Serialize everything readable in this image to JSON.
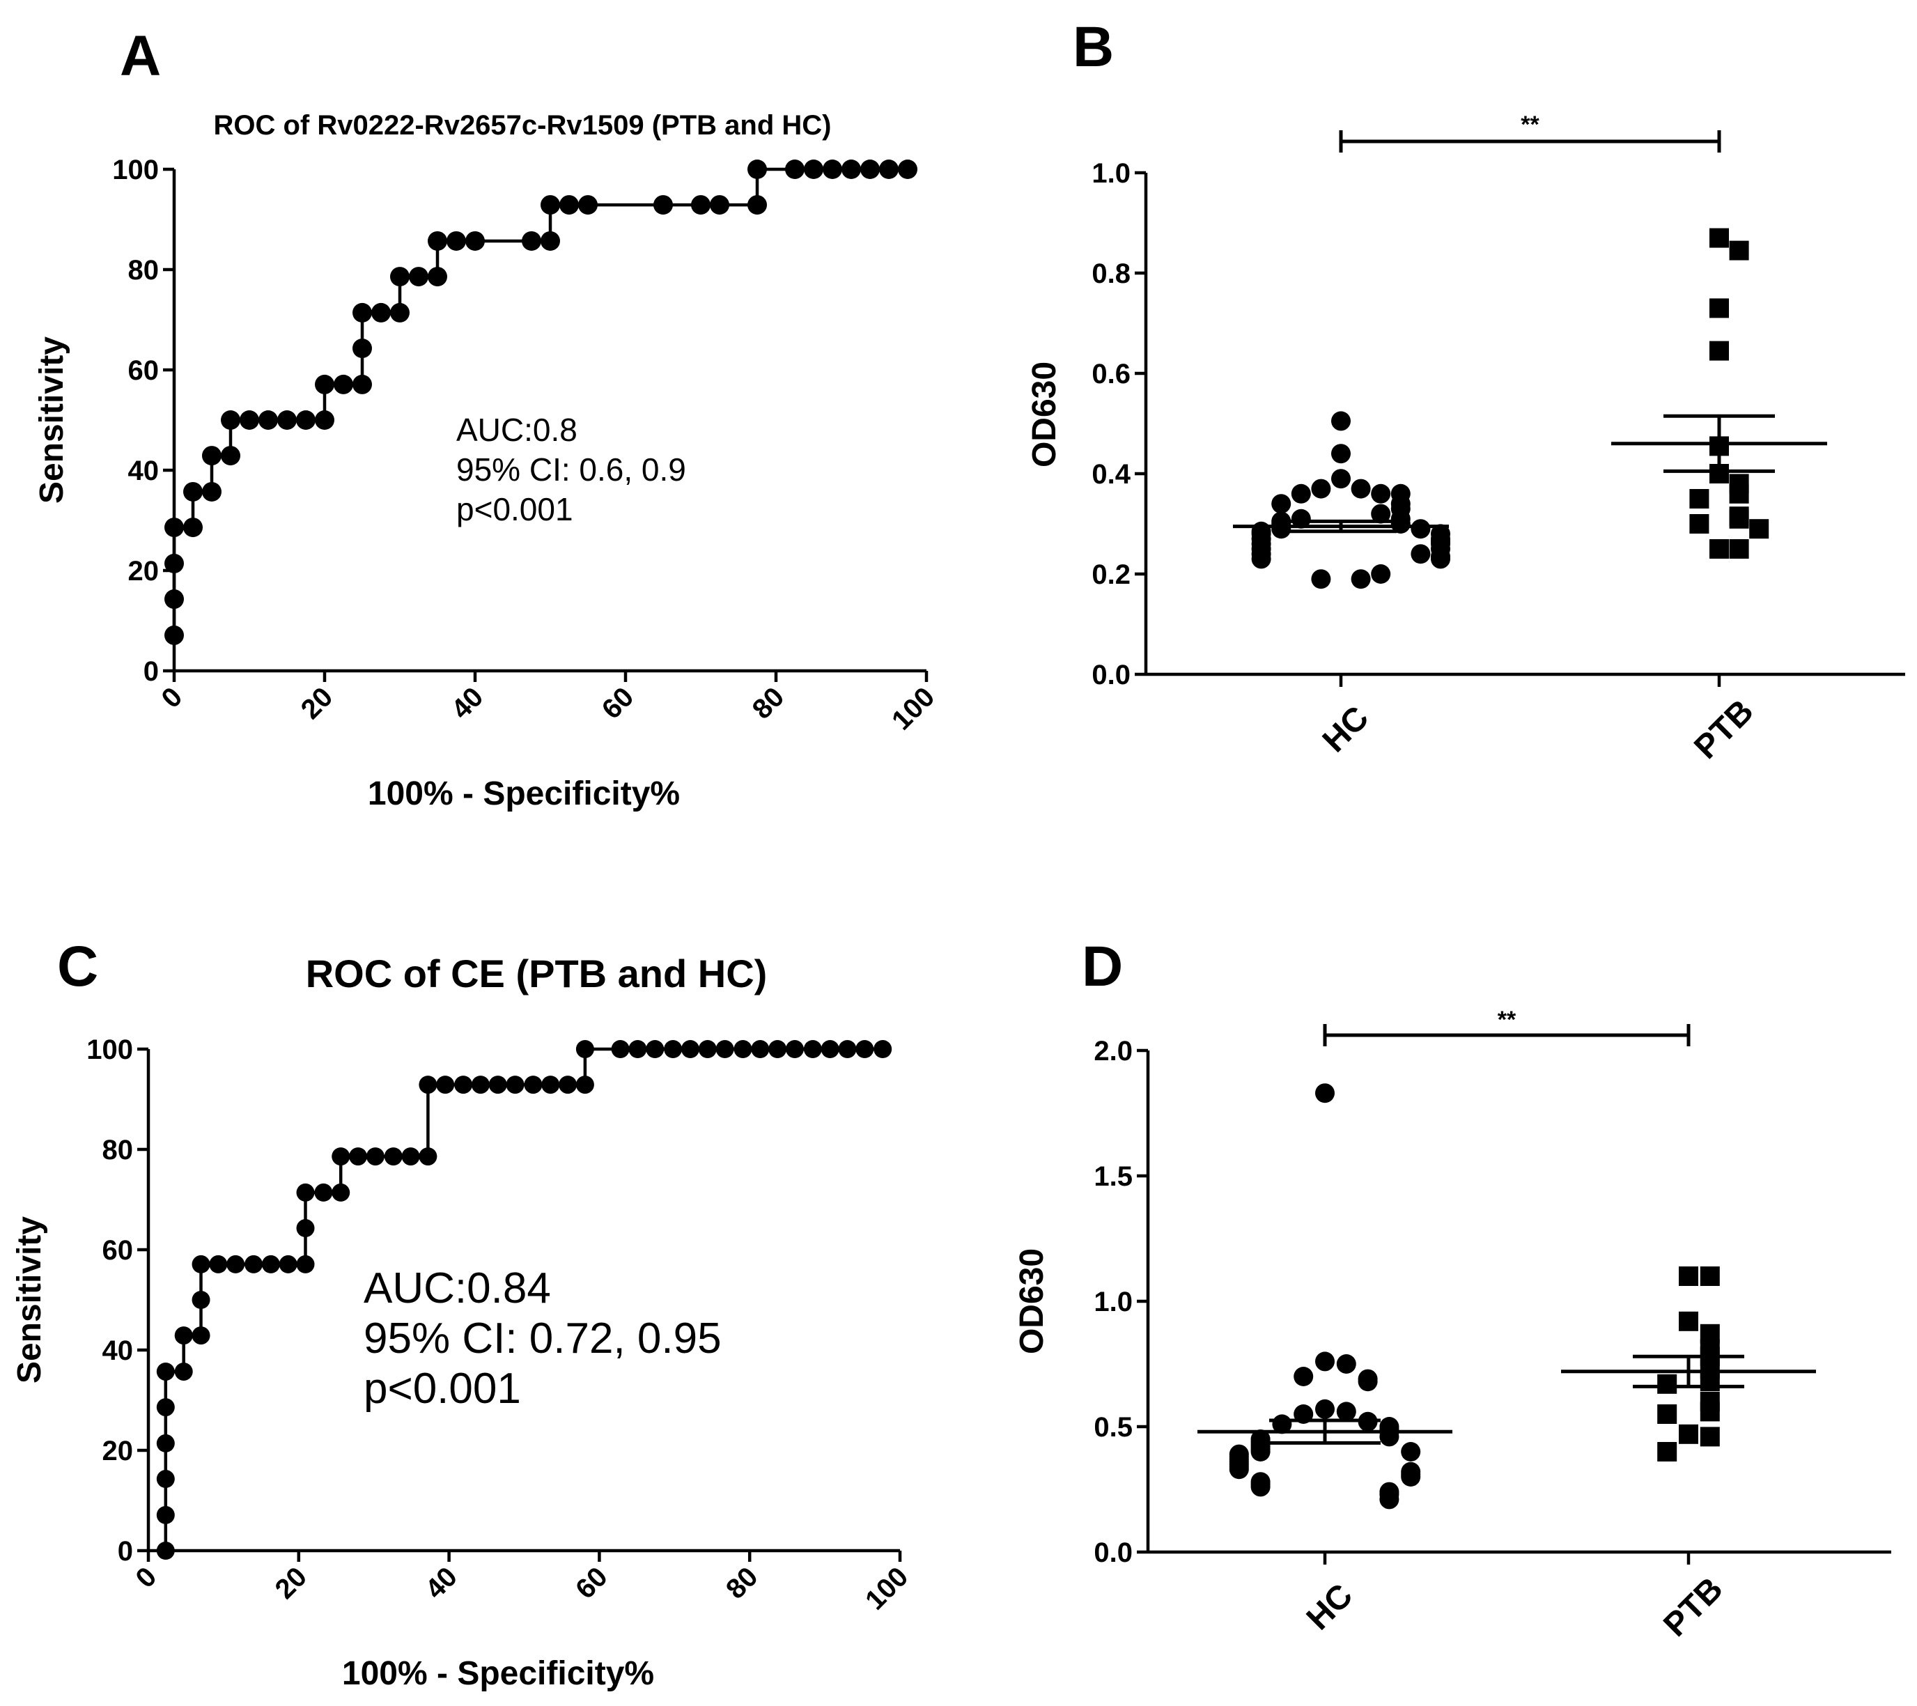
{
  "panels": {
    "A": {
      "letter": "A"
    },
    "B": {
      "letter": "B"
    },
    "C": {
      "letter": "C"
    },
    "D": {
      "letter": "D"
    }
  },
  "chart_data": [
    {
      "id": "A",
      "type": "line",
      "title": "ROC of Rv0222-Rv2657c-Rv1509 (PTB and HC)",
      "xlabel": "100% - Specificity%",
      "ylabel": "Sensitivity",
      "xlim": [
        0,
        100
      ],
      "ylim": [
        0,
        100
      ],
      "xticks": [
        0,
        20,
        40,
        60,
        80,
        100
      ],
      "yticks": [
        0,
        20,
        40,
        60,
        80,
        100
      ],
      "annotation": [
        "AUC:0.8",
        "95% CI: 0.6, 0.9",
        "p<0.001"
      ],
      "points": [
        [
          0,
          7.1
        ],
        [
          0,
          14.3
        ],
        [
          0,
          21.4
        ],
        [
          0,
          28.6
        ],
        [
          2.5,
          28.6
        ],
        [
          2.5,
          35.7
        ],
        [
          5,
          35.7
        ],
        [
          5,
          42.9
        ],
        [
          7.5,
          42.9
        ],
        [
          7.5,
          50
        ],
        [
          10,
          50
        ],
        [
          12.5,
          50
        ],
        [
          15,
          50
        ],
        [
          17.5,
          50
        ],
        [
          20,
          50
        ],
        [
          20,
          57.1
        ],
        [
          22.5,
          57.1
        ],
        [
          25,
          57.1
        ],
        [
          25,
          64.3
        ],
        [
          25,
          71.4
        ],
        [
          27.5,
          71.4
        ],
        [
          30,
          71.4
        ],
        [
          30,
          78.6
        ],
        [
          32.5,
          78.6
        ],
        [
          35,
          78.6
        ],
        [
          35,
          85.7
        ],
        [
          37.5,
          85.7
        ],
        [
          40,
          85.7
        ],
        [
          47.5,
          85.7
        ],
        [
          50,
          85.7
        ],
        [
          50,
          92.9
        ],
        [
          52.5,
          92.9
        ],
        [
          55,
          92.9
        ],
        [
          65,
          92.9
        ],
        [
          70,
          92.9
        ],
        [
          72.5,
          92.9
        ],
        [
          77.5,
          92.9
        ],
        [
          77.5,
          100
        ],
        [
          82.5,
          100
        ],
        [
          85,
          100
        ],
        [
          87.5,
          100
        ],
        [
          90,
          100
        ],
        [
          92.5,
          100
        ],
        [
          95,
          100
        ],
        [
          97.5,
          100
        ]
      ]
    },
    {
      "id": "B",
      "type": "scatter",
      "ylabel": "OD630",
      "ylim": [
        0,
        1.0
      ],
      "yticks": [
        "0.0",
        "0.2",
        "0.4",
        "0.6",
        "0.8",
        "1.0"
      ],
      "categories": [
        "HC",
        "PTB"
      ],
      "significance": "**",
      "series": [
        {
          "name": "HC",
          "marker": "circle",
          "mean": 0.295,
          "sem": 0.01,
          "values": [
            0.505,
            0.44,
            0.39,
            0.37,
            0.37,
            0.36,
            0.36,
            0.36,
            0.34,
            0.34,
            0.33,
            0.32,
            0.31,
            0.31,
            0.305,
            0.3,
            0.3,
            0.29,
            0.29,
            0.285,
            0.28,
            0.28,
            0.27,
            0.27,
            0.265,
            0.26,
            0.26,
            0.25,
            0.25,
            0.24,
            0.24,
            0.235,
            0.23,
            0.23,
            0.2,
            0.19,
            0.19
          ]
        },
        {
          "name": "PTB",
          "marker": "square",
          "mean": 0.46,
          "sem": 0.055,
          "values": [
            0.87,
            0.845,
            0.73,
            0.645,
            0.455,
            0.4,
            0.38,
            0.36,
            0.35,
            0.315,
            0.31,
            0.3,
            0.29,
            0.25,
            0.25
          ]
        }
      ]
    },
    {
      "id": "C",
      "type": "line",
      "title": "ROC of CE (PTB and HC)",
      "xlabel": "100% - Specificity%",
      "ylabel": "Sensitivity",
      "xlim": [
        0,
        100
      ],
      "ylim": [
        0,
        100
      ],
      "xticks": [
        0,
        20,
        40,
        60,
        80,
        100
      ],
      "yticks": [
        0,
        20,
        40,
        60,
        80,
        100
      ],
      "annotation": [
        "AUC:0.84",
        "95% CI: 0.72, 0.95",
        "p<0.001"
      ],
      "points": [
        [
          2.3,
          0
        ],
        [
          2.3,
          7.1
        ],
        [
          2.3,
          14.3
        ],
        [
          2.3,
          21.4
        ],
        [
          2.3,
          28.6
        ],
        [
          2.3,
          35.7
        ],
        [
          4.7,
          35.7
        ],
        [
          4.7,
          42.9
        ],
        [
          7,
          42.9
        ],
        [
          7,
          50
        ],
        [
          7,
          57.1
        ],
        [
          9.3,
          57.1
        ],
        [
          11.6,
          57.1
        ],
        [
          14,
          57.1
        ],
        [
          16.3,
          57.1
        ],
        [
          18.6,
          57.1
        ],
        [
          20.9,
          57.1
        ],
        [
          20.9,
          64.3
        ],
        [
          20.9,
          71.4
        ],
        [
          23.3,
          71.4
        ],
        [
          25.6,
          71.4
        ],
        [
          25.6,
          78.6
        ],
        [
          27.9,
          78.6
        ],
        [
          30.2,
          78.6
        ],
        [
          32.6,
          78.6
        ],
        [
          34.9,
          78.6
        ],
        [
          37.2,
          78.6
        ],
        [
          37.2,
          92.9
        ],
        [
          39.5,
          92.9
        ],
        [
          41.9,
          92.9
        ],
        [
          44.2,
          92.9
        ],
        [
          46.5,
          92.9
        ],
        [
          48.8,
          92.9
        ],
        [
          51.2,
          92.9
        ],
        [
          53.5,
          92.9
        ],
        [
          55.8,
          92.9
        ],
        [
          58.1,
          92.9
        ],
        [
          58.1,
          100
        ],
        [
          62.8,
          100
        ],
        [
          65.1,
          100
        ],
        [
          67.4,
          100
        ],
        [
          69.8,
          100
        ],
        [
          72.1,
          100
        ],
        [
          74.4,
          100
        ],
        [
          76.7,
          100
        ],
        [
          79.1,
          100
        ],
        [
          81.4,
          100
        ],
        [
          83.7,
          100
        ],
        [
          86,
          100
        ],
        [
          88.4,
          100
        ],
        [
          90.7,
          100
        ],
        [
          93,
          100
        ],
        [
          95.3,
          100
        ],
        [
          97.7,
          100
        ]
      ]
    },
    {
      "id": "D",
      "type": "scatter",
      "ylabel": "OD630",
      "ylim": [
        0,
        2.0
      ],
      "yticks": [
        "0.0",
        "0.5",
        "1.0",
        "1.5",
        "2.0"
      ],
      "categories": [
        "HC",
        "PTB"
      ],
      "significance": "**",
      "series": [
        {
          "name": "HC",
          "marker": "circle",
          "mean": 0.48,
          "sem": 0.045,
          "values": [
            1.83,
            0.76,
            0.75,
            0.7,
            0.69,
            0.68,
            0.57,
            0.56,
            0.55,
            0.52,
            0.51,
            0.5,
            0.49,
            0.48,
            0.46,
            0.45,
            0.44,
            0.43,
            0.42,
            0.41,
            0.4,
            0.4,
            0.39,
            0.38,
            0.37,
            0.36,
            0.35,
            0.34,
            0.33,
            0.32,
            0.31,
            0.3,
            0.28,
            0.27,
            0.26,
            0.24,
            0.23,
            0.21
          ]
        },
        {
          "name": "PTB",
          "marker": "square",
          "mean": 0.72,
          "sem": 0.06,
          "values": [
            1.1,
            1.1,
            0.92,
            0.87,
            0.81,
            0.78,
            0.73,
            0.68,
            0.67,
            0.6,
            0.56,
            0.55,
            0.47,
            0.46,
            0.4
          ]
        }
      ]
    }
  ]
}
